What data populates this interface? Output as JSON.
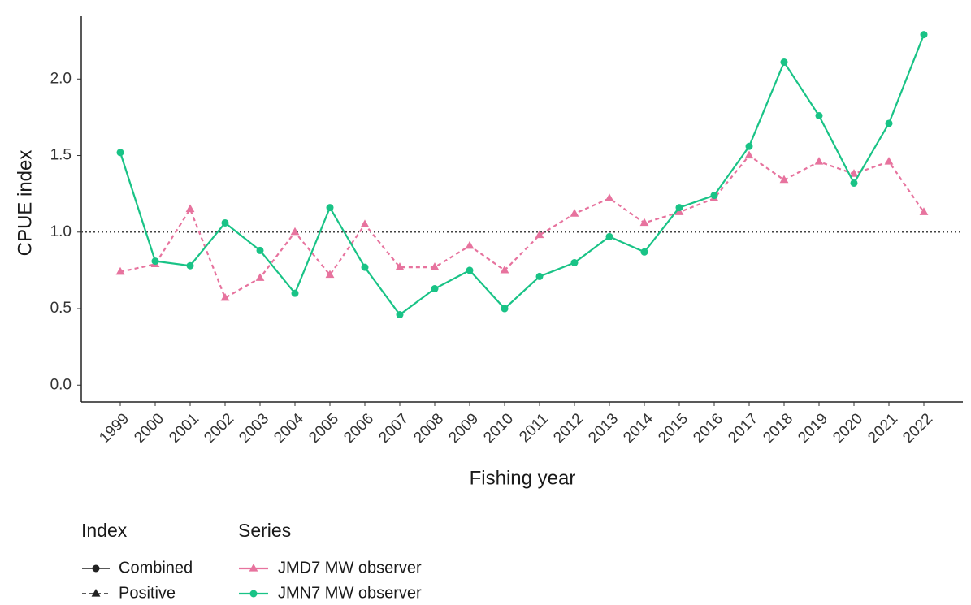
{
  "chart_data": {
    "type": "line",
    "x_label": "Fishing year",
    "y_label": "CPUE index",
    "categories": [
      "1999",
      "2000",
      "2001",
      "2002",
      "2003",
      "2004",
      "2005",
      "2006",
      "2007",
      "2008",
      "2009",
      "2010",
      "2011",
      "2012",
      "2013",
      "2014",
      "2015",
      "2016",
      "2017",
      "2018",
      "2019",
      "2020",
      "2021",
      "2022"
    ],
    "ylim": [
      -0.11,
      2.41
    ],
    "yticks": [
      {
        "value": 0,
        "label": "0.0"
      },
      {
        "value": 0.5,
        "label": "0.5"
      },
      {
        "value": 1,
        "label": "1.0"
      },
      1.5,
      {
        "value": 2,
        "label": "2.0"
      }
    ],
    "reference_line": 1,
    "index_legend": {
      "title": "Index",
      "items": [
        {
          "name": "Combined",
          "line_style": "solid",
          "marker": "circle"
        },
        {
          "name": "Positive",
          "line_style": "dashed",
          "marker": "triangle"
        }
      ]
    },
    "legend_title": "Series",
    "series": [
      {
        "name": "JMD7 MW observer",
        "color": "#e7739e",
        "line_style": "dashed",
        "marker": "triangle",
        "values": [
          0.74,
          0.79,
          1.15,
          0.57,
          0.7,
          1.0,
          0.72,
          1.05,
          0.77,
          0.77,
          0.91,
          0.75,
          0.98,
          1.12,
          1.22,
          1.06,
          1.13,
          1.22,
          1.5,
          1.34,
          1.46,
          1.38,
          1.46,
          1.13
        ]
      },
      {
        "name": "JMN7 MW observer",
        "color": "#19c386",
        "line_style": "solid",
        "marker": "circle",
        "values": [
          1.52,
          0.81,
          0.78,
          1.06,
          0.88,
          0.6,
          1.16,
          0.77,
          0.46,
          0.63,
          0.75,
          0.5,
          0.71,
          0.8,
          0.97,
          0.87,
          1.16,
          1.24,
          1.56,
          2.11,
          1.76,
          1.32,
          1.71,
          2.29
        ]
      }
    ]
  }
}
